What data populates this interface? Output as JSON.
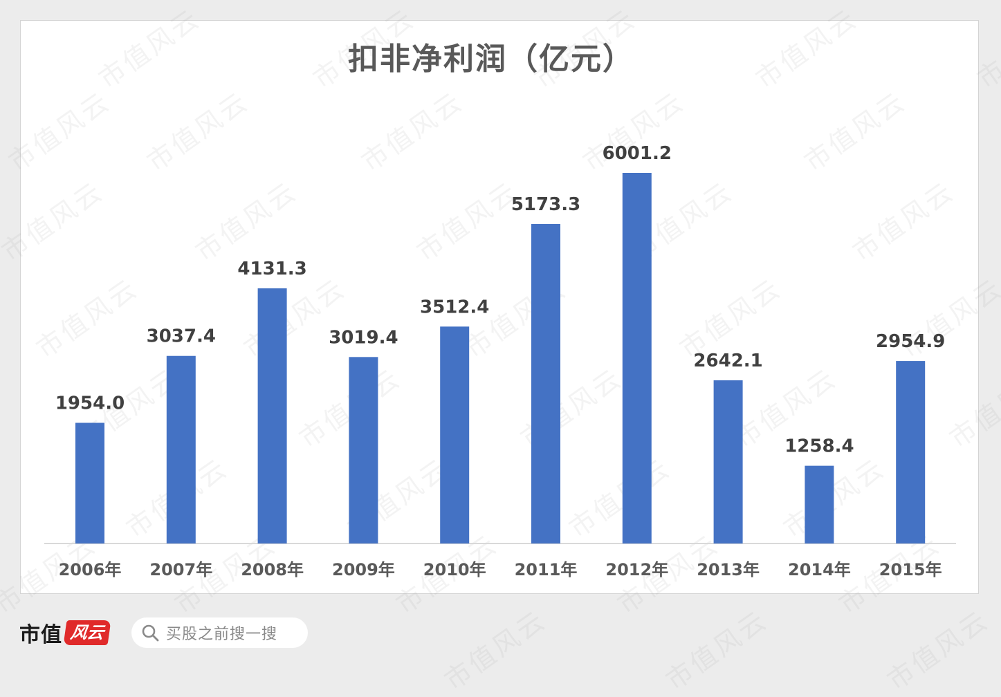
{
  "footer": {
    "logo_text": "市值",
    "logo_badge": "风云",
    "search_placeholder": "买股之前搜一搜",
    "search_icon": "search-icon"
  },
  "watermark_text": "市值风云",
  "colors": {
    "bar": "#4472c4",
    "axis": "#d9d9d9",
    "label": "#404040",
    "tick": "#595959"
  },
  "chart_data": {
    "type": "bar",
    "title": "扣非净利润（亿元）",
    "categories": [
      "2006年",
      "2007年",
      "2008年",
      "2009年",
      "2010年",
      "2011年",
      "2012年",
      "2013年",
      "2014年",
      "2015年"
    ],
    "values": [
      1954.0,
      3037.4,
      4131.3,
      3019.4,
      3512.4,
      5173.3,
      6001.2,
      2642.1,
      1258.4,
      2954.9
    ],
    "value_labels": [
      "1954.0",
      "3037.4",
      "4131.3",
      "3019.4",
      "3512.4",
      "5173.3",
      "6001.2",
      "2642.1",
      "1258.4",
      "2954.9"
    ],
    "xlabel": "",
    "ylabel": "",
    "ylim": [
      0,
      6000
    ],
    "grid": false,
    "legend": "none"
  }
}
